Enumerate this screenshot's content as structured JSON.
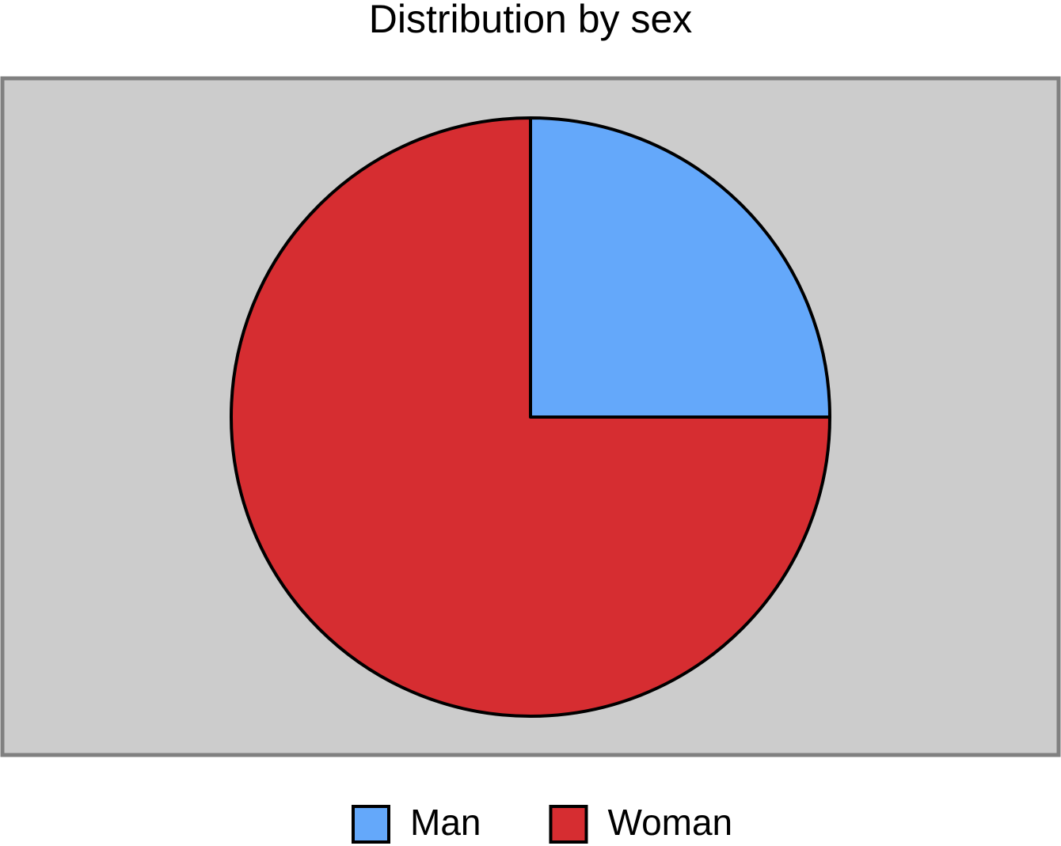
{
  "chart_data": {
    "type": "pie",
    "title": "Distribution by sex",
    "categories": [
      "Man",
      "Woman"
    ],
    "values": [
      25,
      75
    ],
    "colors": [
      "#64a8fa",
      "#d62d31"
    ]
  }
}
